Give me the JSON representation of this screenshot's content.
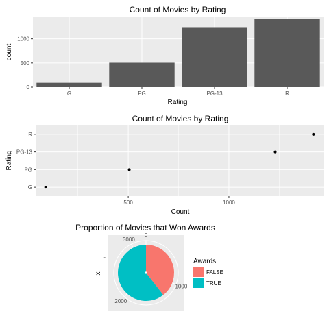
{
  "chart_data": [
    {
      "type": "bar",
      "title": "Count of Movies by Rating",
      "xlabel": "Rating",
      "ylabel": "count",
      "categories": [
        "G",
        "PG",
        "PG-13",
        "R"
      ],
      "values": [
        90,
        505,
        1230,
        1420
      ],
      "ylim": [
        0,
        1450
      ],
      "yticks": [
        0,
        500,
        1000
      ],
      "ytick_labels": [
        "0",
        "500",
        "1000"
      ],
      "grid": true,
      "colors": {
        "bar": "#595959",
        "panel": "#ebebeb",
        "grid": "#ffffff"
      }
    },
    {
      "type": "scatter",
      "title": "Count of Movies by Rating",
      "xlabel": "Count",
      "ylabel": "Rating",
      "categories": [
        "G",
        "PG",
        "PG-13",
        "R"
      ],
      "values": [
        90,
        505,
        1230,
        1420
      ],
      "xlim": [
        40,
        1470
      ],
      "xticks": [
        500,
        1000
      ],
      "xtick_labels": [
        "500",
        "1000"
      ],
      "grid": true,
      "colors": {
        "point": "#000000",
        "panel": "#ebebeb",
        "grid": "#ffffff"
      }
    },
    {
      "type": "pie",
      "title": "Proportion of Movies that Won Awards",
      "xlabel": "",
      "ylabel": "x",
      "coord": "polar",
      "slices": [
        {
          "label": "FALSE",
          "value": 1280,
          "color": "#F8766D"
        },
        {
          "label": "TRUE",
          "value": 1965,
          "color": "#00BFC4"
        }
      ],
      "ticks": [
        0,
        1000,
        2000,
        3000
      ],
      "tick_labels": [
        "0",
        "1000",
        "2000",
        "3000"
      ],
      "tick_max": 3245,
      "legend": {
        "title": "Awards",
        "position": "right"
      },
      "colors": {
        "panel": "#ebebeb",
        "grid": "#ffffff"
      }
    }
  ]
}
